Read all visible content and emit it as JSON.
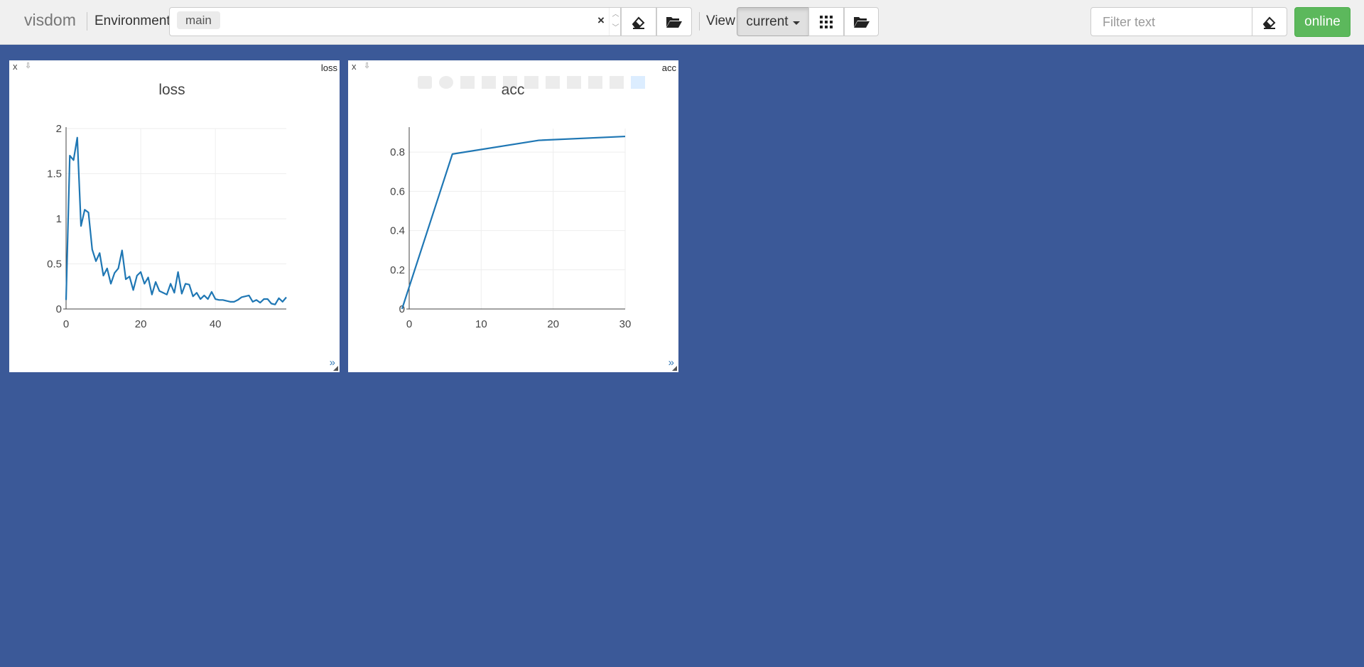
{
  "navbar": {
    "brand": "visdom",
    "environment_label": "Environment",
    "environment_tag": "main",
    "env_clear": "×",
    "view_label": "View",
    "view_selected": "current",
    "filter_placeholder": "Filter text",
    "status_button": "online",
    "status_color": "#5cb85c"
  },
  "panes": [
    {
      "title_tag": "loss",
      "close": "x",
      "download": "⇩",
      "expand": "»"
    },
    {
      "title_tag": "acc",
      "close": "x",
      "download": "⇩",
      "expand": "»"
    }
  ],
  "chart_data": [
    {
      "type": "line",
      "title": "loss",
      "line_color": "#1f77b4",
      "grid": true,
      "xlim": [
        0,
        59
      ],
      "ylim": [
        0,
        2
      ],
      "xticks": [
        0,
        20,
        40
      ],
      "yticks": [
        0,
        0.5,
        1,
        1.5,
        2
      ],
      "ytick_labels": [
        "0",
        "0.5",
        "1",
        "1.5",
        "2"
      ],
      "x": [
        0,
        1,
        2,
        3,
        4,
        5,
        6,
        7,
        8,
        9,
        10,
        11,
        12,
        13,
        14,
        15,
        16,
        17,
        18,
        19,
        20,
        21,
        22,
        23,
        24,
        25,
        26,
        27,
        28,
        29,
        30,
        31,
        32,
        33,
        34,
        35,
        36,
        37,
        38,
        39,
        40,
        41,
        42,
        43,
        44,
        45,
        46,
        47,
        48,
        49,
        50,
        51,
        52,
        53,
        54,
        55,
        56,
        57,
        58,
        59
      ],
      "y": [
        0.1,
        1.7,
        1.65,
        1.9,
        0.92,
        1.1,
        1.07,
        0.66,
        0.53,
        0.62,
        0.37,
        0.45,
        0.28,
        0.4,
        0.45,
        0.65,
        0.33,
        0.36,
        0.21,
        0.37,
        0.41,
        0.28,
        0.35,
        0.16,
        0.3,
        0.2,
        0.18,
        0.16,
        0.28,
        0.18,
        0.41,
        0.17,
        0.28,
        0.27,
        0.14,
        0.18,
        0.11,
        0.15,
        0.11,
        0.19,
        0.11,
        0.1,
        0.1,
        0.09,
        0.08,
        0.08,
        0.1,
        0.13,
        0.14,
        0.15,
        0.08,
        0.1,
        0.07,
        0.11,
        0.11,
        0.06,
        0.05,
        0.12,
        0.08,
        0.13
      ]
    },
    {
      "type": "line",
      "title": "acc",
      "line_color": "#1f77b4",
      "grid": true,
      "xlim": [
        0,
        30
      ],
      "ylim": [
        0,
        0.92
      ],
      "xticks": [
        0,
        10,
        20,
        30
      ],
      "yticks": [
        0,
        0.2,
        0.4,
        0.6,
        0.8
      ],
      "ytick_labels": [
        "0",
        "0.2",
        "0.4",
        "0.6",
        "0.8"
      ],
      "x": [
        -1,
        6,
        18,
        30
      ],
      "y": [
        0,
        0.79,
        0.86,
        0.88
      ]
    }
  ]
}
